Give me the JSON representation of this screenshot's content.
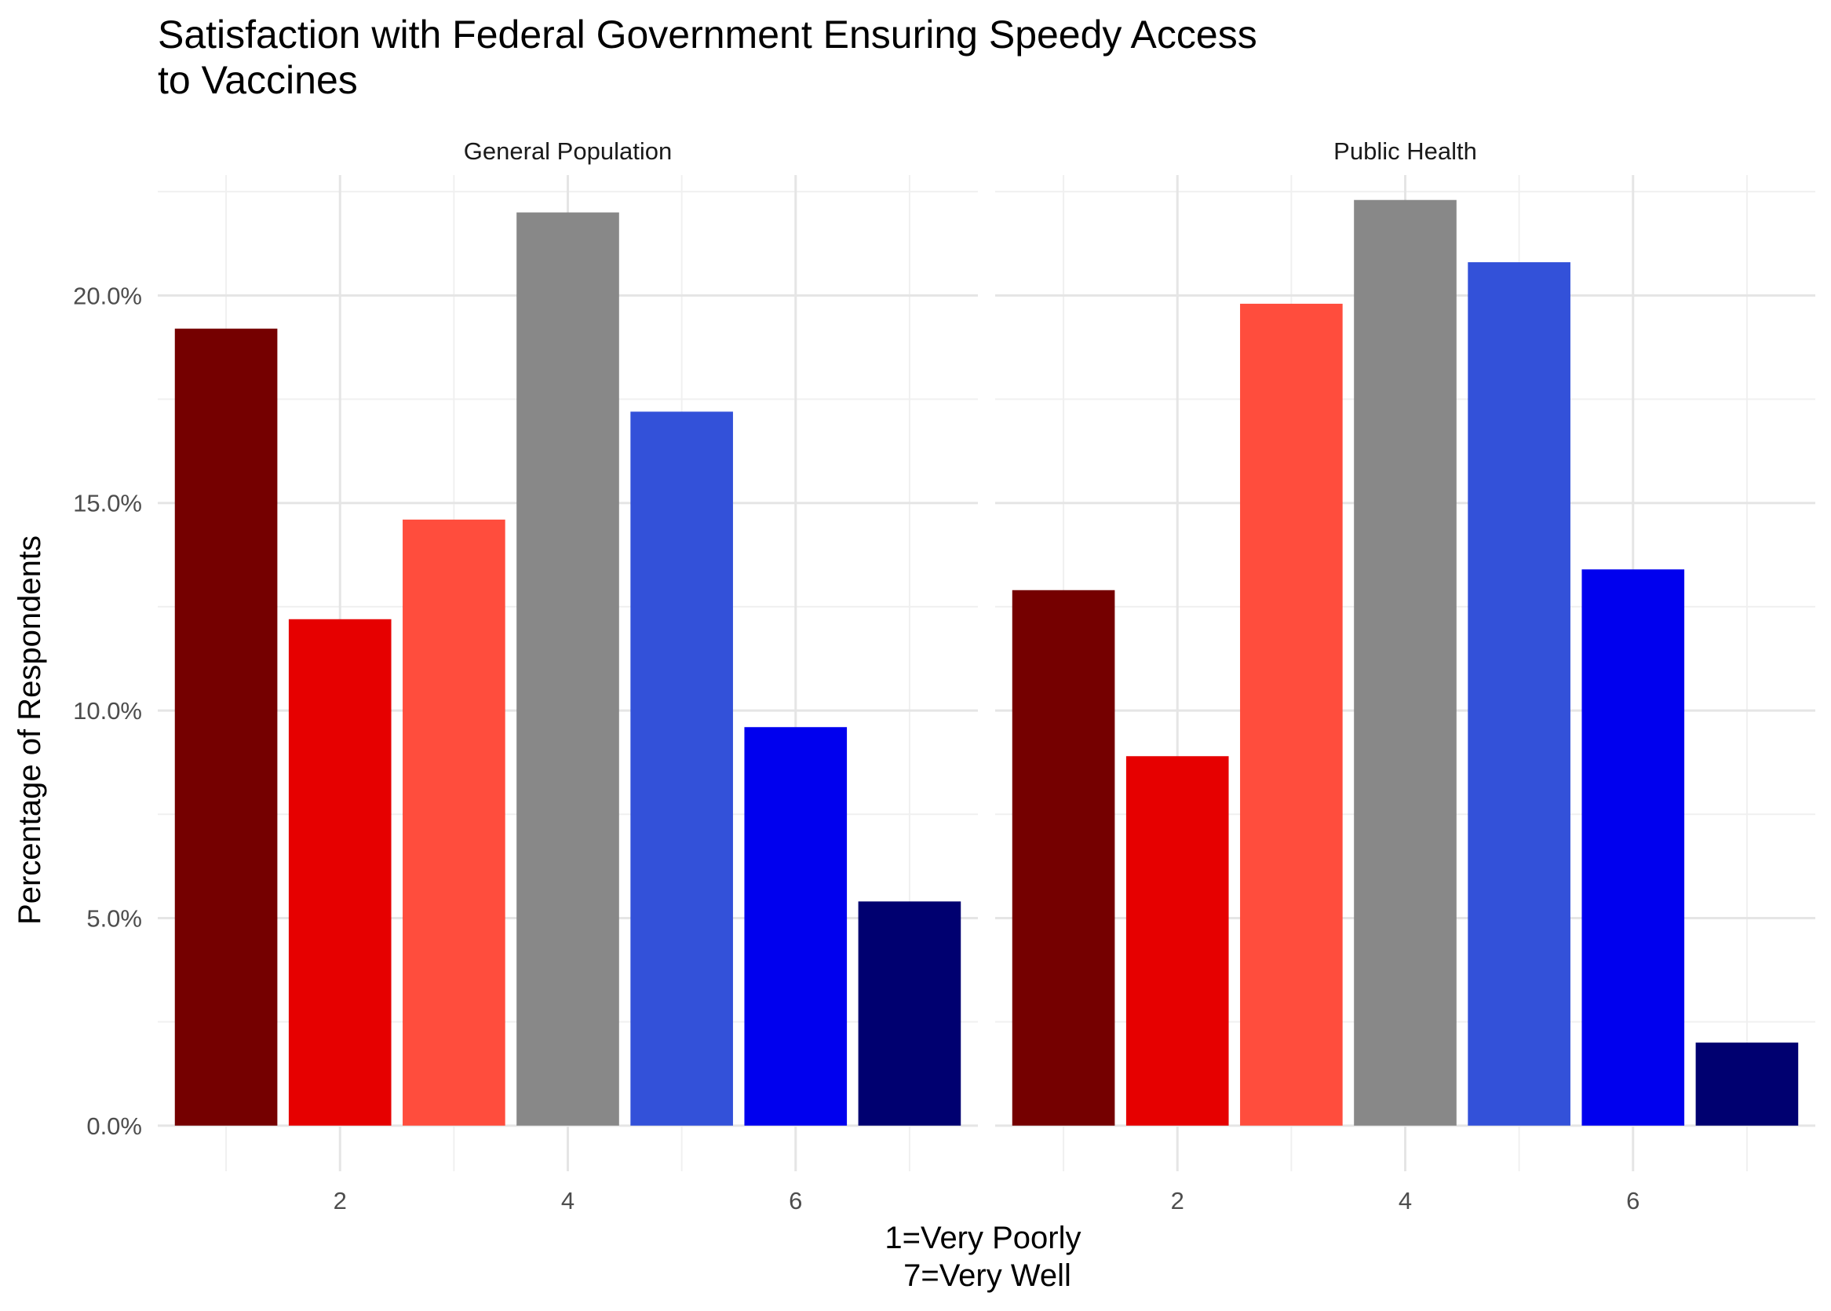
{
  "chart_data": {
    "type": "bar",
    "title": [
      "Satisfaction with Federal Government Ensuring Speedy Access",
      "to Vaccines"
    ],
    "xlabel": [
      "1=Very Poorly",
      "7=Very Well"
    ],
    "ylabel": "Percentage of Respondents",
    "x_categories": [
      1,
      2,
      3,
      4,
      5,
      6,
      7
    ],
    "x_ticks": [
      {
        "value": 2,
        "label": "2"
      },
      {
        "value": 4,
        "label": "4"
      },
      {
        "value": 6,
        "label": "6"
      }
    ],
    "y_ticks": [
      {
        "value": 0,
        "label": "0.0%"
      },
      {
        "value": 5,
        "label": "5.0%"
      },
      {
        "value": 10,
        "label": "10.0%"
      },
      {
        "value": 15,
        "label": "15.0%"
      },
      {
        "value": 20,
        "label": "20.0%"
      }
    ],
    "ylim": [
      -1.1,
      22.9
    ],
    "xlim": [
      0.4,
      7.6
    ],
    "grid": true,
    "legend": "none",
    "bar_colors": [
      "#750000",
      "#e60000",
      "#ff4d3d",
      "#888888",
      "#3351d9",
      "#0000ee",
      "#000070"
    ],
    "panels": [
      {
        "name": "General Population",
        "values": [
          19.2,
          12.2,
          14.6,
          22.0,
          17.2,
          9.6,
          5.4
        ]
      },
      {
        "name": "Public Health",
        "values": [
          12.9,
          8.9,
          19.8,
          22.3,
          20.8,
          13.4,
          2.0
        ]
      }
    ]
  }
}
